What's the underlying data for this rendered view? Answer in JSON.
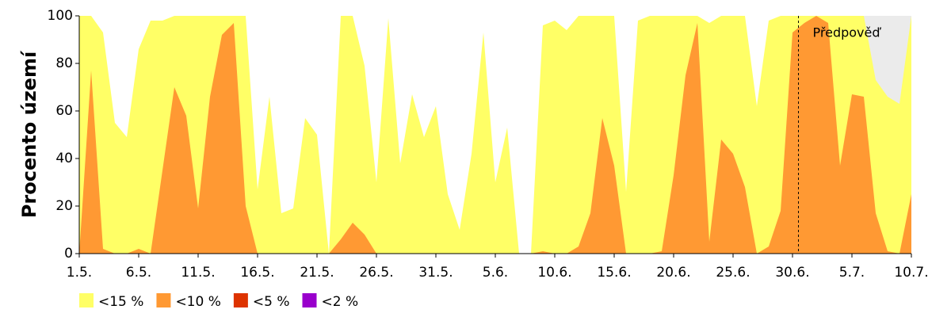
{
  "chart_data": {
    "type": "area",
    "ylabel": "Procento území",
    "categories": [
      "1.5.",
      null,
      null,
      null,
      null,
      "6.5.",
      null,
      null,
      null,
      null,
      "11.5.",
      null,
      null,
      null,
      null,
      "16.5.",
      null,
      null,
      null,
      null,
      "21.5.",
      null,
      null,
      null,
      null,
      "26.5.",
      null,
      null,
      null,
      null,
      "31.5.",
      null,
      null,
      null,
      null,
      "5.6.",
      null,
      null,
      null,
      null,
      "10.6.",
      null,
      null,
      null,
      null,
      "15.6.",
      null,
      null,
      null,
      null,
      "20.6.",
      null,
      null,
      null,
      null,
      "25.6.",
      null,
      null,
      null,
      null,
      "30.6.",
      null,
      null,
      null,
      null,
      "5.7.",
      null,
      null,
      null,
      null,
      "10.7."
    ],
    "series": [
      {
        "name": "<15 %",
        "color": "#ffff66",
        "values": [
          100,
          100,
          93,
          55,
          49,
          86,
          98,
          98,
          100,
          100,
          100,
          100,
          100,
          100,
          100,
          27,
          66,
          17,
          19,
          57,
          50,
          0,
          100,
          100,
          79,
          30,
          99,
          38,
          67,
          49,
          62,
          25,
          10,
          42,
          93,
          30,
          53,
          0,
          0,
          96,
          98,
          94,
          100,
          100,
          100,
          100,
          26,
          98,
          100,
          100,
          100,
          100,
          100,
          97,
          100,
          100,
          100,
          62,
          98,
          100,
          100,
          100,
          100,
          100,
          100,
          100,
          100,
          73,
          66,
          63,
          100
        ]
      },
      {
        "name": "<10 %",
        "color": "#ff9933",
        "values": [
          0,
          77,
          2,
          0,
          0,
          2,
          0,
          35,
          70,
          58,
          19,
          66,
          92,
          97,
          20,
          0,
          0,
          0,
          0,
          0,
          0,
          0,
          6,
          13,
          8,
          0,
          0,
          0,
          0,
          0,
          0,
          0,
          0,
          0,
          0,
          0,
          0,
          0,
          0,
          1,
          0,
          0,
          3,
          17,
          57,
          37,
          0,
          0,
          0,
          1,
          33,
          75,
          97,
          5,
          48,
          42,
          28,
          0,
          3,
          18,
          93,
          97,
          100,
          97,
          37,
          67,
          66,
          17,
          1,
          0,
          25
        ]
      },
      {
        "name": "<5 %",
        "color": "#dd3300",
        "values": [
          0,
          0,
          0,
          0,
          0,
          0,
          0,
          0,
          0,
          0,
          0,
          0,
          0,
          0,
          0,
          0,
          0,
          0,
          0,
          0,
          0,
          0,
          0,
          0,
          0,
          0,
          0,
          0,
          0,
          0,
          0,
          0,
          0,
          0,
          0,
          0,
          0,
          0,
          0,
          0,
          0,
          0,
          0,
          0,
          0,
          0,
          0,
          0,
          0,
          0,
          0,
          0,
          0,
          0,
          0,
          0,
          0,
          0,
          0,
          0,
          0,
          0,
          0,
          0,
          0,
          0,
          0,
          0,
          0,
          0,
          0
        ]
      },
      {
        "name": "<2 %",
        "color": "#9900cc",
        "values": [
          0,
          0,
          0,
          0,
          0,
          0,
          0,
          0,
          0,
          0,
          0,
          0,
          0,
          0,
          0,
          0,
          0,
          0,
          0,
          0,
          0,
          0,
          0,
          0,
          0,
          0,
          0,
          0,
          0,
          0,
          0,
          0,
          0,
          0,
          0,
          0,
          0,
          0,
          0,
          0,
          0,
          0,
          0,
          0,
          0,
          0,
          0,
          0,
          0,
          0,
          0,
          0,
          0,
          0,
          0,
          0,
          0,
          0,
          0,
          0,
          0,
          0,
          0,
          0,
          0,
          0,
          0,
          0,
          0,
          0,
          0
        ]
      }
    ],
    "forecast": {
      "label": "Předpověď",
      "at": 60.5,
      "color": "#ebebeb"
    },
    "ylim": [
      0,
      100
    ],
    "yticks": [
      0,
      20,
      40,
      60,
      80,
      100
    ]
  }
}
